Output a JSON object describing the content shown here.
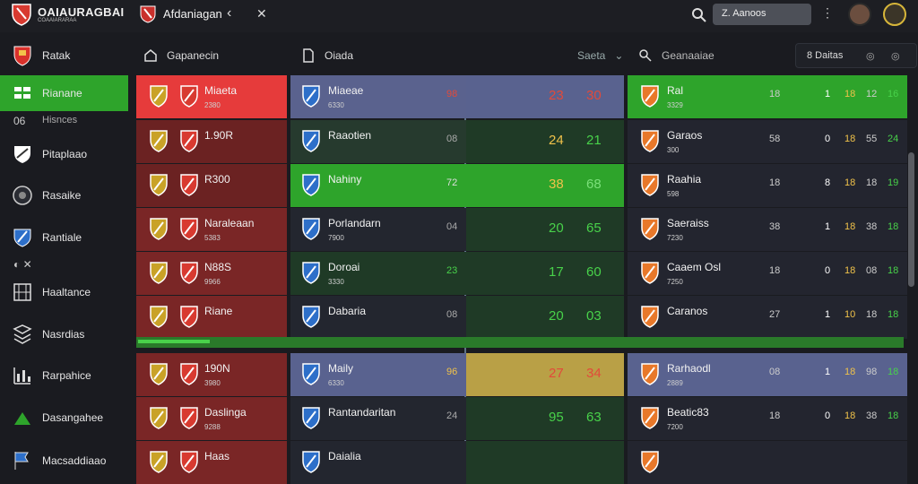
{
  "app": {
    "brand": "OAIAURAGBAI",
    "brand_sub": "COAAIARARAA",
    "tab_title": "Afdaniagan",
    "search_placeholder": "Z. Aanoos"
  },
  "icons": {
    "logo": "shield-logo",
    "back": "chevron-left-icon",
    "close": "close-icon",
    "search": "search-icon",
    "more": "more-vertical-icon"
  },
  "sidebar": {
    "items": [
      {
        "label": "Ratak",
        "icon": "shield-icon"
      },
      {
        "label": "Rianane",
        "icon": "grid-icon",
        "active": true
      },
      {
        "label": "Hisnces",
        "icon": "compare-icon",
        "sub": true
      },
      {
        "label": "Pitaplaao",
        "icon": "crest-icon"
      },
      {
        "label": "Rasaike",
        "icon": "ball-icon"
      },
      {
        "label": "Rantiale",
        "icon": "badge-icon"
      },
      {
        "label": "",
        "icon": "mini-icons",
        "sub": true
      },
      {
        "label": "Haaltance",
        "icon": "table-icon"
      },
      {
        "label": "Nasrdias",
        "icon": "layers-icon"
      },
      {
        "label": "Rarpahice",
        "icon": "chart-icon"
      },
      {
        "label": "Dasangahee",
        "icon": "arrow-icon"
      },
      {
        "label": "Macsaddiaao",
        "icon": "flag-icon"
      }
    ]
  },
  "header": {
    "col_a": "Gapanecin",
    "col_b": "Oiada",
    "col_c": "Saeta",
    "col_d": "Geanaaiae",
    "filter_label": "8 Daitas"
  },
  "rows": [
    {
      "a_name": "Miaeta",
      "a_sub": "2380",
      "b_name": "Miaeae",
      "b_sub": "6330",
      "b_val": "98",
      "c1": "23",
      "c2": "30",
      "d_name": "Ral",
      "d_sub": "3329",
      "d1": "18",
      "d2": "1",
      "d3": "18",
      "d4": "12",
      "d5": "16"
    },
    {
      "a_name": "1.90R",
      "a_sub": "",
      "b_name": "Raaotien",
      "b_sub": "",
      "b_val": "08",
      "c1": "24",
      "c2": "21",
      "d_name": "Garaos",
      "d_sub": "300",
      "d1": "58",
      "d2": "0",
      "d3": "18",
      "d4": "55",
      "d5": "24"
    },
    {
      "a_name": "R300",
      "a_sub": "",
      "b_name": "Nahiny",
      "b_sub": "",
      "b_val": "72",
      "c1": "38",
      "c2": "68",
      "d_name": "Raahia",
      "d_sub": "598",
      "d1": "18",
      "d2": "8",
      "d3": "18",
      "d4": "18",
      "d5": "19"
    },
    {
      "a_name": "Naraleaan",
      "a_sub": "5383",
      "b_name": "Porlandarn",
      "b_sub": "7900",
      "b_val": "04",
      "c1": "20",
      "c2": "65",
      "d_name": "Saeraiss",
      "d_sub": "7230",
      "d1": "38",
      "d2": "1",
      "d3": "18",
      "d4": "38",
      "d5": "18"
    },
    {
      "a_name": "N88S",
      "a_sub": "9966",
      "b_name": "Doroai",
      "b_sub": "3330",
      "b_val": "23",
      "c1": "17",
      "c2": "60",
      "d_name": "Caaem Osl",
      "d_sub": "7250",
      "d1": "18",
      "d2": "0",
      "d3": "18",
      "d4": "08",
      "d5": "18"
    },
    {
      "a_name": "Riane",
      "a_sub": "",
      "b_name": "Dabaria",
      "b_sub": "",
      "b_val": "08",
      "c1": "20",
      "c2": "03",
      "d_name": "Caranos",
      "d_sub": "",
      "d1": "27",
      "d2": "1",
      "d3": "10",
      "d4": "18",
      "d5": "18"
    },
    {
      "a_name": "190N",
      "a_sub": "3980",
      "b_name": "Maily",
      "b_sub": "6330",
      "b_val": "96",
      "c1": "27",
      "c2": "34",
      "d_name": "Rarhaodl",
      "d_sub": "2889",
      "d1": "08",
      "d2": "1",
      "d3": "18",
      "d4": "98",
      "d5": "18"
    },
    {
      "a_name": "Daslinga",
      "a_sub": "9288",
      "b_name": "Rantandaritan",
      "b_sub": "",
      "b_val": "24",
      "c1": "95",
      "c2": "63",
      "d_name": "Beatic83",
      "d_sub": "7200",
      "d1": "18",
      "d2": "0",
      "d3": "18",
      "d4": "38",
      "d5": "18"
    },
    {
      "a_name": "Haas",
      "a_sub": "",
      "b_name": "Daialia",
      "b_sub": "",
      "b_val": "",
      "c1": "",
      "c2": "",
      "d_name": "",
      "d_sub": "",
      "d1": "",
      "d2": "",
      "d3": "",
      "d4": "",
      "d5": ""
    }
  ],
  "colors": {
    "green": "#2ea42b",
    "red": "#e23b3b",
    "darkred": "#7a2626",
    "navy": "#2b2f45",
    "purple": "#59628f",
    "gold": "#b9a046",
    "darkgreen": "#1f4a2a"
  }
}
